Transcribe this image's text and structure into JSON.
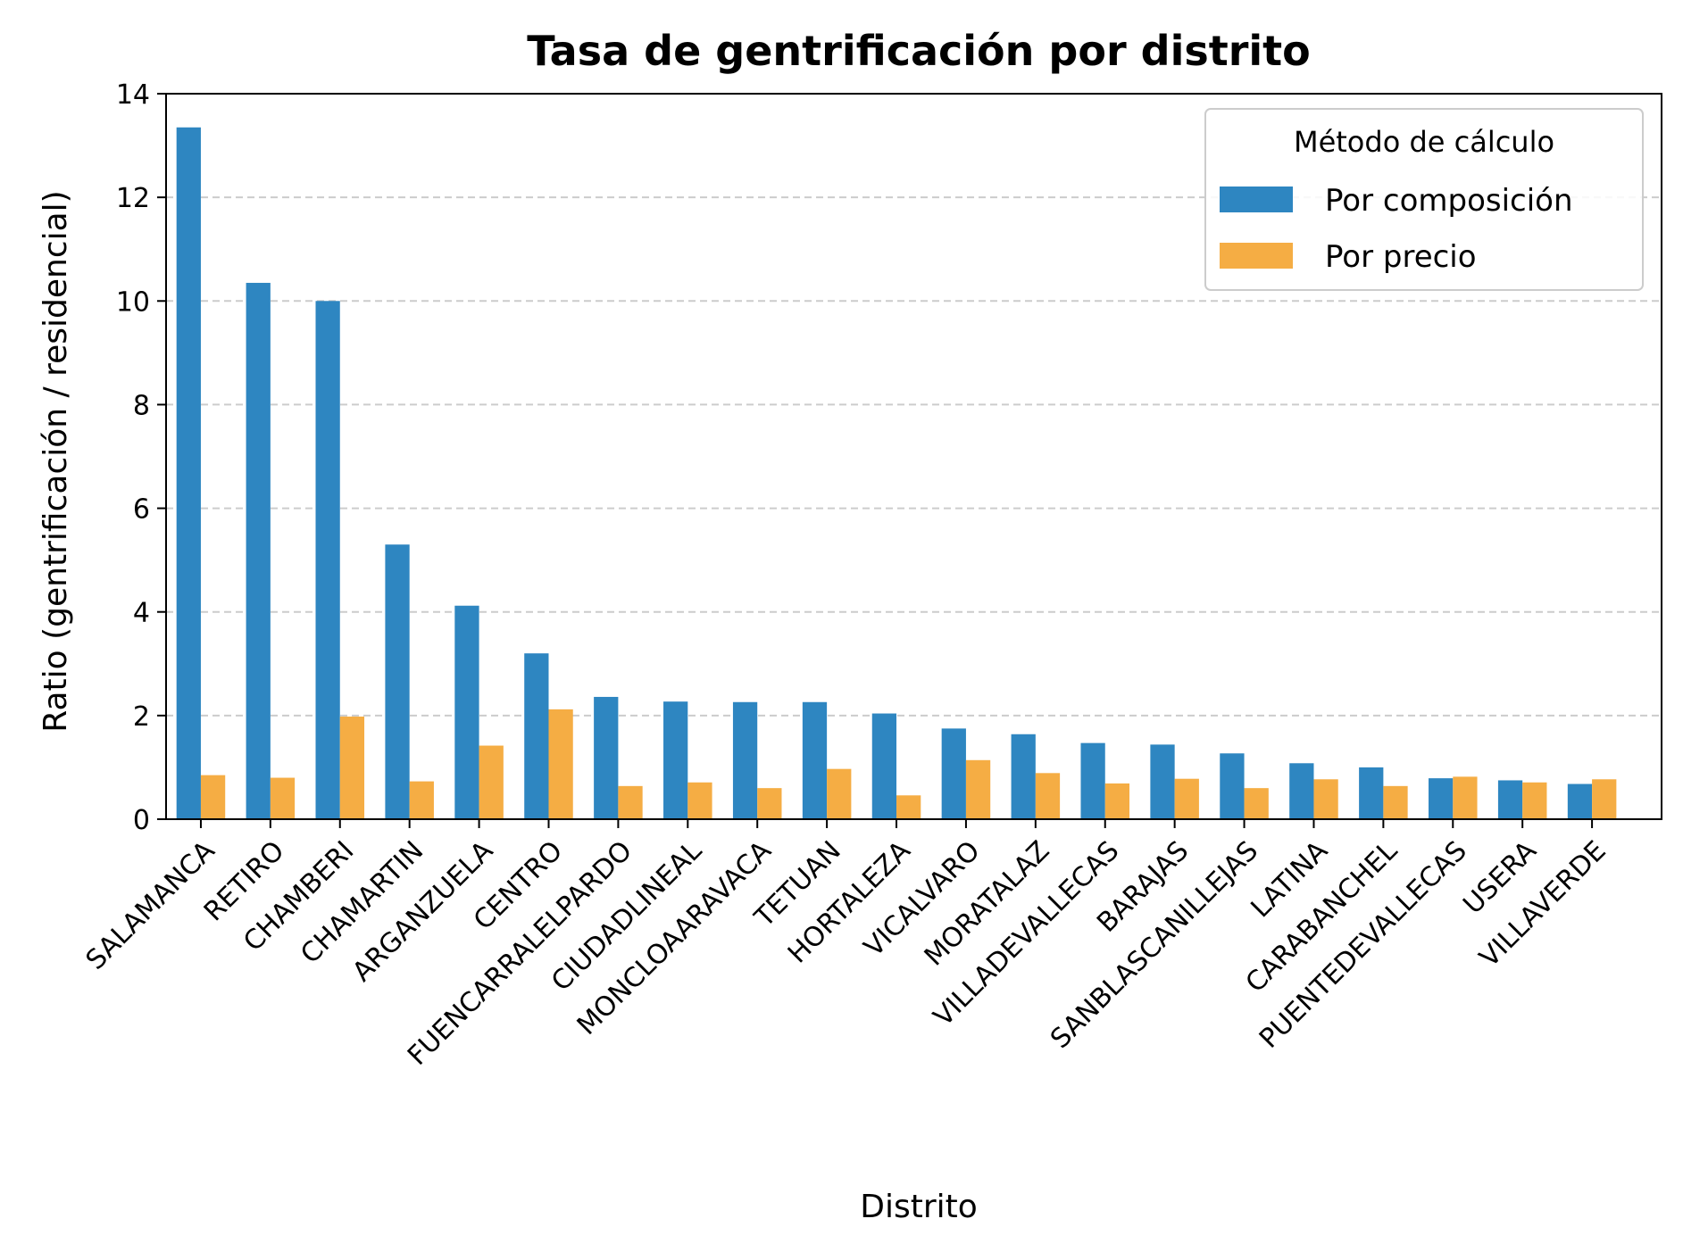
{
  "chart_data": {
    "type": "bar",
    "title": "Tasa de gentrificación por distrito",
    "xlabel": "Distrito",
    "ylabel": "Ratio (gentrificación / residencial)",
    "ylim": [
      0,
      14
    ],
    "yticks": [
      "0",
      "2",
      "4",
      "6",
      "8",
      "10",
      "12",
      "14"
    ],
    "grid": "y-dashed",
    "legend": {
      "title": "Método de cálculo",
      "placement": "top-right"
    },
    "categories": [
      "SALAMANCA",
      "RETIRO",
      "CHAMBERI",
      "CHAMARTIN",
      "ARGANZUELA",
      "CENTRO",
      "FUENCARRALELPARDO",
      "CIUDADLINEAL",
      "MONCLOAARAVACA",
      "TETUAN",
      "HORTALEZA",
      "VICALVARO",
      "MORATALAZ",
      "VILLADEVALLECAS",
      "BARAJAS",
      "SANBLASCANILLEJAS",
      "LATINA",
      "CARABANCHEL",
      "PUENTEDEVALLECAS",
      "USERA",
      "VILLAVERDE"
    ],
    "series": [
      {
        "name": "Por composición",
        "color": "#2e86c1",
        "values": [
          13.35,
          10.35,
          10.0,
          5.3,
          4.12,
          3.2,
          2.36,
          2.27,
          2.26,
          2.26,
          2.04,
          1.75,
          1.64,
          1.47,
          1.44,
          1.27,
          1.08,
          1.0,
          0.79,
          0.75,
          0.68
        ]
      },
      {
        "name": "Por precio",
        "color": "#f5ad44",
        "values": [
          0.85,
          0.8,
          1.98,
          0.73,
          1.42,
          2.12,
          0.64,
          0.71,
          0.6,
          0.97,
          0.46,
          1.14,
          0.89,
          0.69,
          0.78,
          0.6,
          0.77,
          0.64,
          0.82,
          0.71,
          0.77
        ]
      }
    ]
  }
}
